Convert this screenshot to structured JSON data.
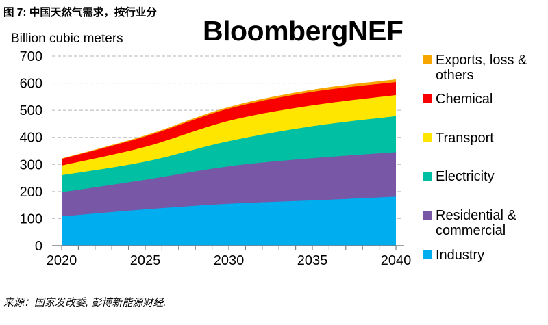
{
  "figure": {
    "title": "图 7: 中国天然气需求，按行业分",
    "brand": "BloombergNEF",
    "unit_label": "Billion cubic meters",
    "source": "来源：国家发改委, 彭博新能源财经."
  },
  "chart_data": {
    "type": "area",
    "stacked": true,
    "title": "图 7: 中国天然气需求，按行业分",
    "ylabel": "Billion cubic meters",
    "xlabel": "",
    "x": [
      2020,
      2025,
      2030,
      2035,
      2040
    ],
    "x_tick_labels": [
      "2020",
      "2025",
      "2030",
      "2035",
      "2040"
    ],
    "y_tick_labels": [
      "0",
      "100",
      "200",
      "300",
      "400",
      "500",
      "600",
      "700"
    ],
    "ylim": [
      0,
      700
    ],
    "xlim": [
      2020,
      2040
    ],
    "grid": "horizontal-dashed",
    "legend_position": "right",
    "series": [
      {
        "name": "Industry",
        "color": "#00AEEF",
        "values": [
          108,
          134,
          155,
          167,
          181
        ]
      },
      {
        "name": "Residential & commercial",
        "color": "#7757A6",
        "values": [
          89,
          109,
          138,
          156,
          164
        ]
      },
      {
        "name": "Electricity",
        "color": "#00BFA2",
        "values": [
          63,
          67,
          93,
          118,
          133
        ]
      },
      {
        "name": "Transport",
        "color": "#FFE600",
        "values": [
          36,
          55,
          75,
          77,
          78
        ]
      },
      {
        "name": "Chemical",
        "color": "#F80000",
        "values": [
          24,
          38,
          45,
          50,
          48
        ]
      },
      {
        "name": "Exports, loss & others",
        "color": "#F7A500",
        "values": [
          2,
          4,
          6,
          8,
          10
        ]
      }
    ],
    "totals_by_anchor_year": [
      322,
      407,
      512,
      576,
      614
    ],
    "axis_color": "#808080",
    "gridline_color": "#c4c4c4"
  }
}
